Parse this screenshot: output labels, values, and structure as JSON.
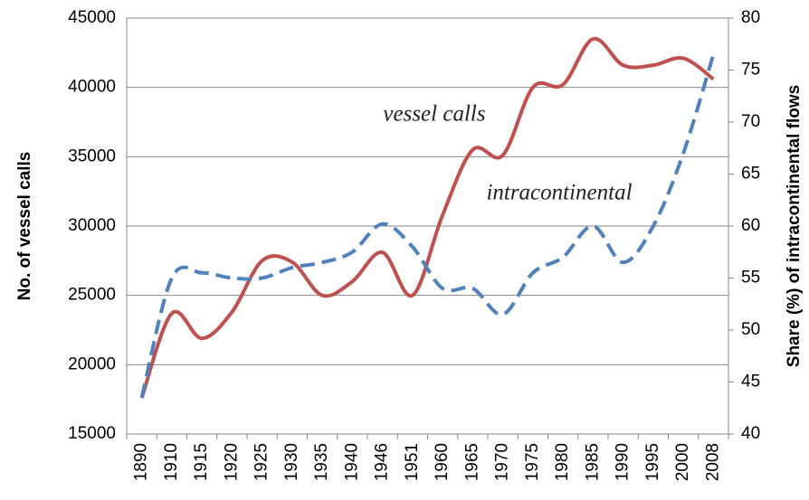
{
  "chart_data": {
    "type": "line",
    "ylabel": "No. of vessel calls",
    "y2label": "Share (%) of intracontinental flows",
    "annotations": [
      "vessel calls",
      "intracontinental"
    ],
    "categories": [
      "1890",
      "1910",
      "1915",
      "1920",
      "1925",
      "1930",
      "1935",
      "1940",
      "1946",
      "1951",
      "1960",
      "1965",
      "1970",
      "1975",
      "1980",
      "1985",
      "1990",
      "1995",
      "2000",
      "2008"
    ],
    "series": [
      {
        "name": "vessel calls",
        "color": "#c0504d",
        "dashed": false,
        "values": [
          17600,
          23700,
          21900,
          23800,
          27500,
          27400,
          25000,
          26000,
          28100,
          25000,
          30800,
          35500,
          35100,
          40000,
          40200,
          43500,
          41600,
          41600,
          42100,
          40600
        ]
      },
      {
        "name": "intracontinental",
        "color": "#4f81bd",
        "dashed": true,
        "axis": "y2",
        "values": [
          43.5,
          55,
          55.5,
          55,
          55,
          56,
          56.5,
          57.5,
          60.2,
          58,
          54,
          54,
          51.5,
          55.5,
          57,
          60,
          56.5,
          60,
          67,
          76.5
        ]
      }
    ],
    "ylim": [
      15000,
      45000
    ],
    "yticks": [
      15000,
      20000,
      25000,
      30000,
      35000,
      40000,
      45000
    ],
    "y2lim": [
      40,
      80
    ],
    "y2ticks": [
      40,
      45,
      50,
      55,
      60,
      65,
      70,
      75,
      80
    ],
    "grid": true
  }
}
